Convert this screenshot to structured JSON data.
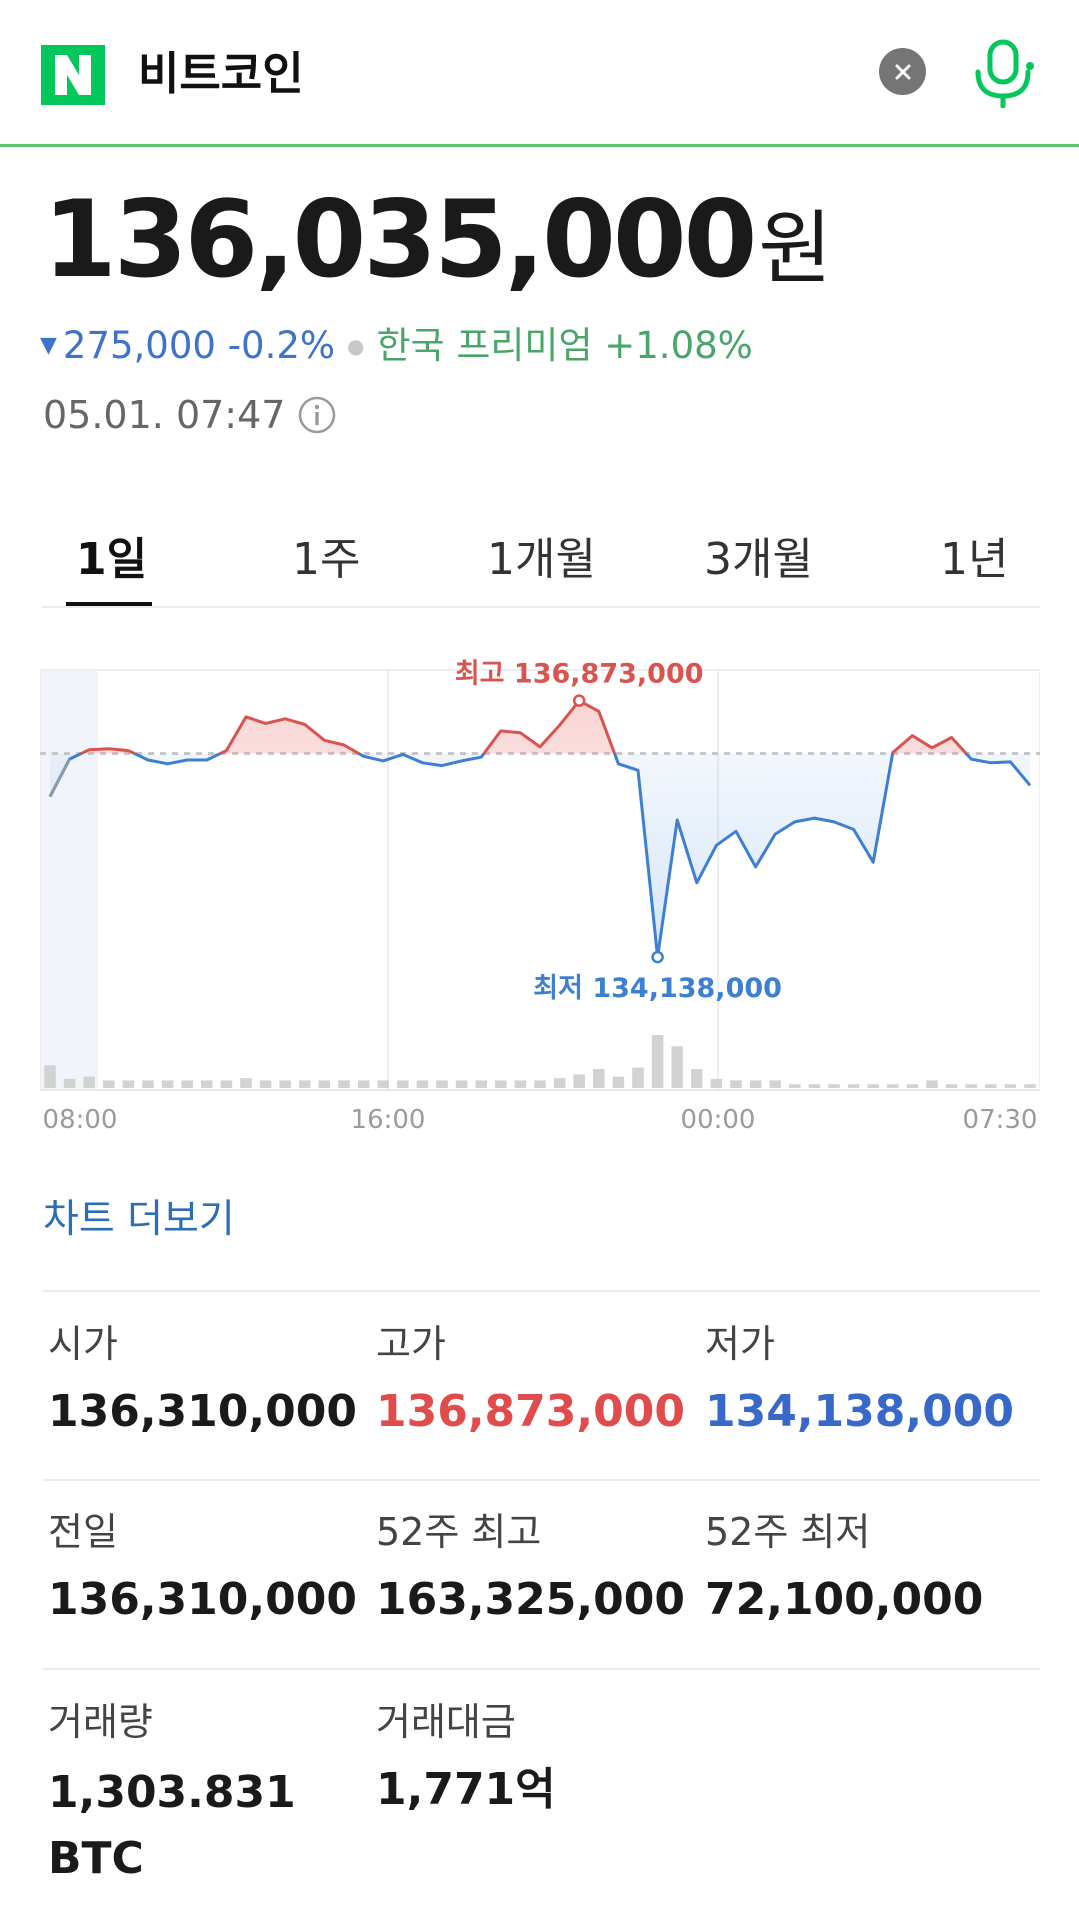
{
  "header": {
    "logo_letter": "N",
    "query": "비트코인",
    "clear_icon": "close-icon",
    "mic_icon": "microphone-icon",
    "brand_color": "#03C75A"
  },
  "quote": {
    "price": "136,035,000",
    "unit": "원",
    "change": "275,000 -0.2%",
    "premium": "한국 프리미엄 +1.08%",
    "timestamp": "05.01. 07:47",
    "down_color": "#3D73C9",
    "premium_color": "#4AA56A"
  },
  "tabs": [
    {
      "label": "1일",
      "active": true
    },
    {
      "label": "1주",
      "active": false
    },
    {
      "label": "1개월",
      "active": false
    },
    {
      "label": "3개월",
      "active": false
    },
    {
      "label": "1년",
      "active": false
    }
  ],
  "chart_data": {
    "type": "line",
    "x_tick_labels": [
      "08:00",
      "16:00",
      "00:00",
      "07:30"
    ],
    "reference_value": 136310000,
    "high_label": "최고 136,873,000",
    "low_label": "최저 134,138,000",
    "high": 136873000,
    "low": 134138000,
    "ylim": [
      134000000,
      137200000
    ],
    "values": [
      135850000,
      136250000,
      136350000,
      136360000,
      136340000,
      136240000,
      136200000,
      136240000,
      136240000,
      136340000,
      136700000,
      136630000,
      136680000,
      136620000,
      136450000,
      136400000,
      136280000,
      136230000,
      136300000,
      136210000,
      136180000,
      136230000,
      136270000,
      136550000,
      136530000,
      136380000,
      136610000,
      136873000,
      136760000,
      136200000,
      136130000,
      134138000,
      135600000,
      134930000,
      135330000,
      135480000,
      135100000,
      135450000,
      135580000,
      135620000,
      135580000,
      135500000,
      135150000,
      136320000,
      136500000,
      136370000,
      136480000,
      136250000,
      136210000,
      136220000,
      135970000
    ],
    "volumes": [
      3,
      1.2,
      1.5,
      1,
      1,
      1,
      1,
      1,
      1,
      1,
      1.3,
      1,
      1,
      1,
      1,
      1,
      1,
      1,
      1,
      1,
      1,
      1,
      1,
      1,
      1,
      1,
      1.3,
      1.8,
      2.5,
      1.5,
      2.7,
      7,
      5.5,
      2.5,
      1.2,
      1,
      1,
      1,
      0.5,
      0.5,
      0.5,
      0.5,
      0.5,
      0.5,
      0.5,
      1,
      0.5,
      0.5,
      0.5,
      0.5,
      0.5
    ],
    "high_color": "#D9534F",
    "low_color": "#3D7FD0",
    "grid": true
  },
  "chart_more": "차트 더보기",
  "stats": [
    {
      "label": "시가",
      "value": "136,310,000",
      "tone": "normal"
    },
    {
      "label": "고가",
      "value": "136,873,000",
      "tone": "red"
    },
    {
      "label": "저가",
      "value": "134,138,000",
      "tone": "blue"
    },
    {
      "label": "전일",
      "value": "136,310,000",
      "tone": "normal"
    },
    {
      "label": "52주 최고",
      "value": "163,325,000",
      "tone": "normal"
    },
    {
      "label": "52주 최저",
      "value": "72,100,000",
      "tone": "normal"
    },
    {
      "label": "거래량",
      "value": "1,303.831 BTC",
      "tone": "normal"
    },
    {
      "label": "거래대금",
      "value": "1,771억",
      "tone": "normal"
    }
  ]
}
